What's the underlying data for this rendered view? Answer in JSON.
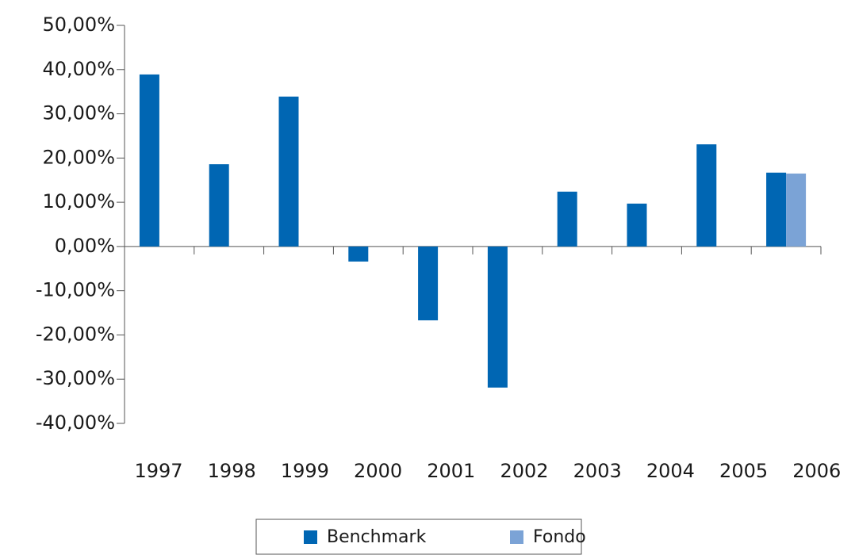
{
  "chart_data": {
    "type": "bar",
    "categories": [
      "1997",
      "1998",
      "1999",
      "2000",
      "2001",
      "2002",
      "2003",
      "2004",
      "2005",
      "2006"
    ],
    "series": [
      {
        "name": "Benchmark",
        "color": "#0066b3",
        "values": [
          38.9,
          18.6,
          33.9,
          -3.4,
          -16.7,
          -31.9,
          12.4,
          9.7,
          23.1,
          16.7
        ]
      },
      {
        "name": "Fondo",
        "color": "#7ba3d6",
        "values": [
          null,
          null,
          null,
          null,
          null,
          null,
          null,
          null,
          null,
          16.5
        ]
      }
    ],
    "ylim": [
      -40,
      50
    ],
    "yticks": [
      {
        "value": -40,
        "label": "-40,00%"
      },
      {
        "value": -30,
        "label": "-30,00%"
      },
      {
        "value": -20,
        "label": "-20,00%"
      },
      {
        "value": -10,
        "label": "-10,00%"
      },
      {
        "value": 0,
        "label": "0,00%"
      },
      {
        "value": 10,
        "label": "10,00%"
      },
      {
        "value": 20,
        "label": "20,00%"
      },
      {
        "value": 30,
        "label": "30,00%"
      },
      {
        "value": 40,
        "label": "40,00%"
      },
      {
        "value": 50,
        "label": "50,00%"
      }
    ],
    "grid": false,
    "legend": "bottom"
  }
}
